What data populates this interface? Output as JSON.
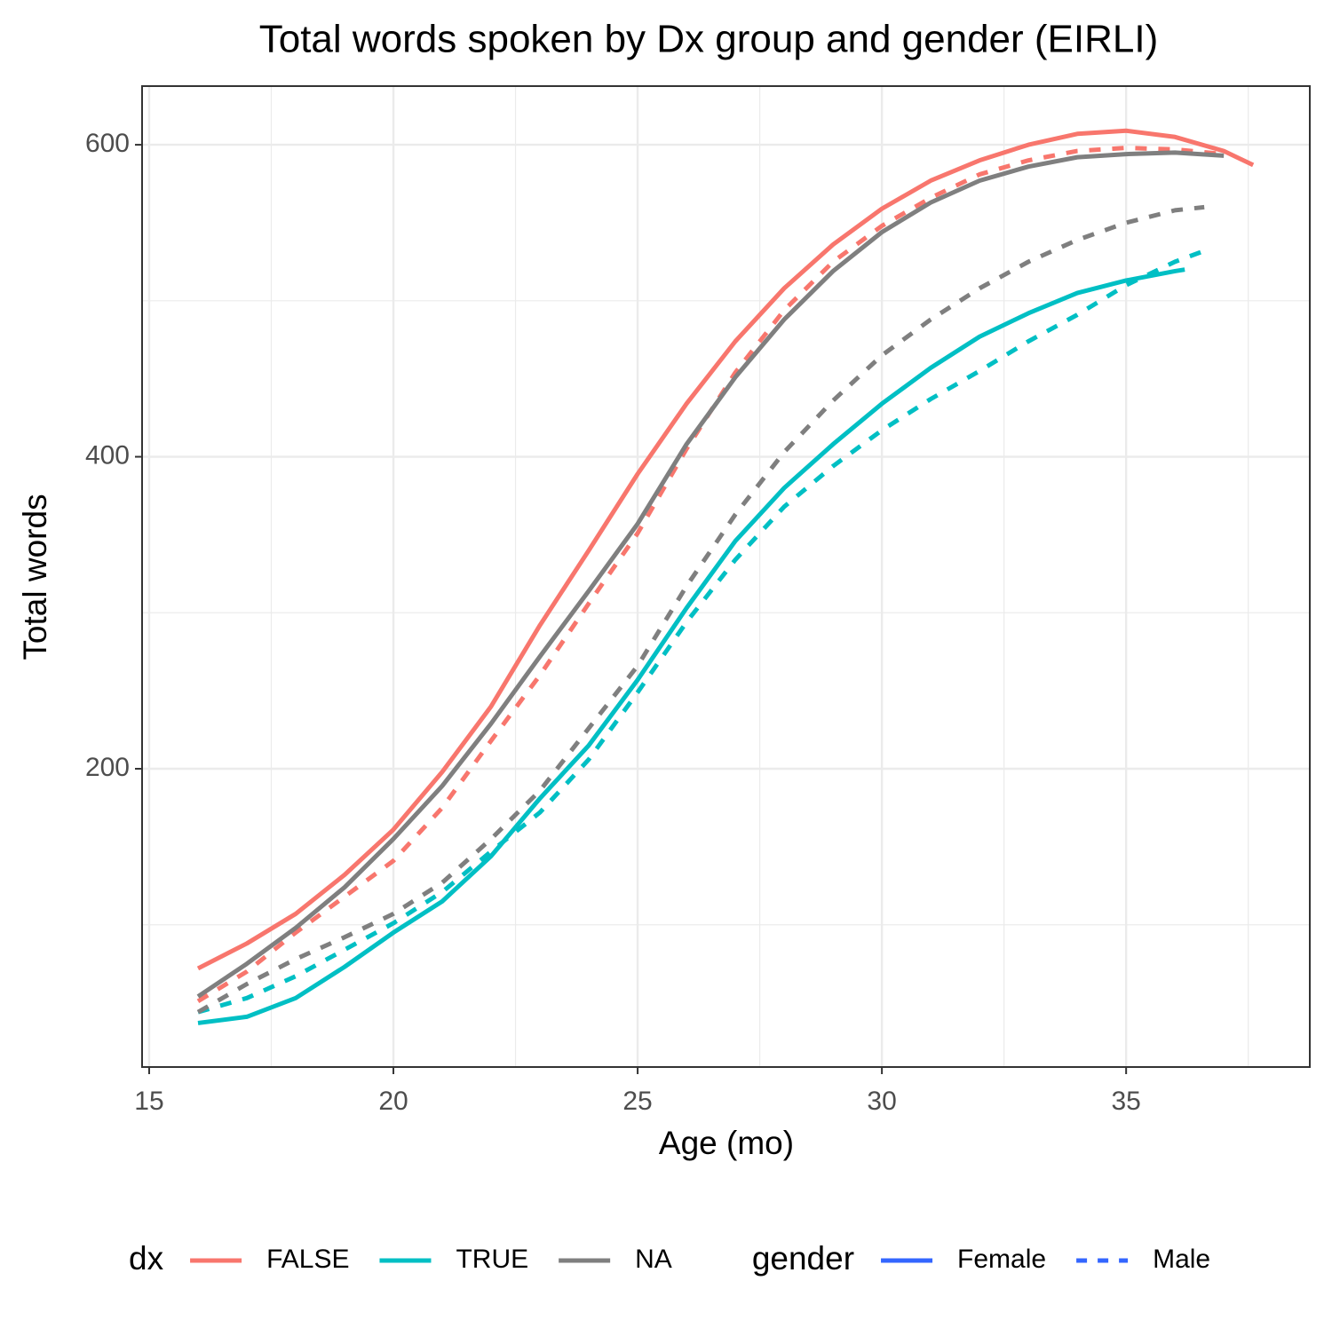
{
  "chart_data": {
    "type": "line",
    "title": "Total words spoken by Dx group and gender (EIRLI)",
    "x_label": "Age (mo)",
    "y_label": "Total words",
    "xlim": [
      14.855,
      38.76
    ],
    "ylim": [
      8.8,
      637.6
    ],
    "xticks": [
      15,
      20,
      25,
      30,
      35
    ],
    "yticks": [
      200,
      400,
      600
    ],
    "x_minor_grid": [
      17.5,
      22.5,
      27.5,
      32.5,
      37.5
    ],
    "y_minor_grid": [
      100,
      300,
      500
    ],
    "grid": true,
    "series": [
      {
        "color": "#F8766D",
        "dash": "solid",
        "x": [
          16,
          17,
          18,
          19,
          20,
          21,
          22,
          23,
          24,
          25,
          26,
          27,
          28,
          29,
          30,
          31,
          32,
          33,
          34,
          35,
          36,
          37,
          37.6
        ],
        "values": [
          72,
          88,
          107,
          132,
          161,
          198,
          240,
          292,
          340,
          389,
          434,
          474,
          508,
          536,
          559,
          577,
          590,
          600,
          607,
          609,
          605,
          596,
          587
        ]
      },
      {
        "color": "#F8766D",
        "dash": "dashed",
        "x": [
          16,
          17,
          18,
          19,
          20,
          21,
          22,
          23,
          24,
          25,
          26,
          27,
          28,
          29,
          30,
          31,
          32,
          33,
          34,
          35,
          36,
          37
        ],
        "values": [
          51,
          70,
          95,
          118,
          141,
          175,
          218,
          260,
          306,
          351,
          405,
          454,
          494,
          525,
          548,
          566,
          581,
          590,
          596,
          598,
          597,
          594
        ]
      },
      {
        "color": "#00BFC4",
        "dash": "solid",
        "x": [
          16,
          17,
          18,
          19,
          20,
          21,
          22,
          23,
          24,
          25,
          26,
          27,
          28,
          29,
          30,
          31,
          32,
          33,
          34,
          35,
          36,
          36.2
        ],
        "values": [
          37,
          41,
          53,
          73,
          95,
          115,
          144,
          181,
          215,
          257,
          303,
          346,
          380,
          408,
          434,
          457,
          477,
          492,
          505,
          513,
          519,
          520
        ]
      },
      {
        "color": "#00BFC4",
        "dash": "dashed",
        "x": [
          16,
          17,
          18,
          19,
          20,
          21,
          22,
          23,
          24,
          25,
          26,
          27,
          28,
          29,
          30,
          31,
          32,
          33,
          34,
          35,
          36,
          36.6
        ],
        "values": [
          44,
          53,
          67,
          84,
          101,
          121,
          147,
          172,
          206,
          249,
          294,
          334,
          368,
          394,
          417,
          437,
          455,
          474,
          491,
          510,
          525,
          532
        ]
      },
      {
        "color": "#7F7F7F",
        "dash": "solid",
        "x": [
          16,
          17,
          18,
          19,
          20,
          21,
          22,
          23,
          24,
          25,
          26,
          27,
          28,
          29,
          30,
          31,
          32,
          33,
          34,
          35,
          36,
          37
        ],
        "values": [
          54,
          75,
          98,
          124,
          155,
          189,
          229,
          272,
          314,
          357,
          408,
          451,
          488,
          519,
          544,
          563,
          577,
          586,
          592,
          594,
          595,
          593
        ]
      },
      {
        "color": "#7F7F7F",
        "dash": "dashed",
        "x": [
          16,
          17,
          18,
          19,
          20,
          21,
          22,
          23,
          24,
          25,
          26,
          27,
          28,
          29,
          30,
          31,
          32,
          33,
          34,
          35,
          36,
          36.6
        ],
        "values": [
          44,
          62,
          78,
          92,
          107,
          127,
          155,
          186,
          226,
          266,
          317,
          363,
          403,
          436,
          465,
          488,
          508,
          525,
          539,
          550,
          558,
          560
        ]
      }
    ],
    "legends": [
      {
        "title": "dx",
        "entries": [
          {
            "label": "FALSE",
            "color": "#F8766D",
            "dash": "solid"
          },
          {
            "label": "TRUE",
            "color": "#00BFC4",
            "dash": "solid"
          },
          {
            "label": "NA",
            "color": "#7F7F7F",
            "dash": "solid"
          }
        ]
      },
      {
        "title": "gender",
        "entries": [
          {
            "label": "Female",
            "color": "#3366FF",
            "dash": "solid"
          },
          {
            "label": "Male",
            "color": "#3366FF",
            "dash": "dashed"
          }
        ]
      }
    ]
  }
}
